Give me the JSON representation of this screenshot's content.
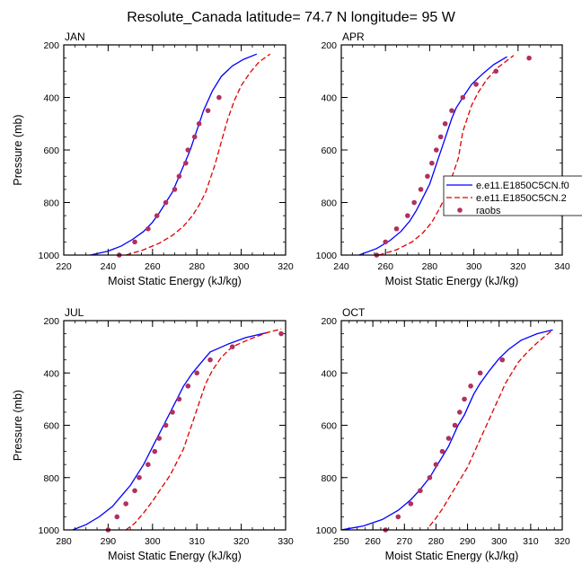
{
  "figure_title": "Resolute_Canada  latitude= 74.7 N longitude= 95 W",
  "legend": {
    "labels": [
      "e.e11.E1850C5CN.f0",
      "e.e11.E1850C5CN.2",
      "raobs"
    ],
    "colors": [
      "#0000ff",
      "#e00000",
      "#b03060"
    ]
  },
  "chart_data": [
    {
      "type": "line",
      "title": "JAN",
      "xlabel": "Moist Static Energy (kJ/kg)",
      "ylabel": "Pressure (mb)",
      "xlim": [
        220,
        320
      ],
      "ylim": [
        1000,
        200
      ],
      "xticks": [
        220,
        240,
        260,
        280,
        300,
        320
      ],
      "yticks": [
        200,
        400,
        600,
        800,
        1000
      ],
      "series": [
        {
          "points": [
            [
              232,
              1000
            ],
            [
              240,
              985
            ],
            [
              246,
              965
            ],
            [
              251,
              940
            ],
            [
              256,
              910
            ],
            [
              260,
              875
            ],
            [
              263,
              840
            ],
            [
              266,
              800
            ],
            [
              269,
              760
            ],
            [
              271,
              720
            ],
            [
              273,
              680
            ],
            [
              275,
              640
            ],
            [
              277,
              600
            ],
            [
              279,
              550
            ],
            [
              281,
              500
            ],
            [
              283,
              450
            ],
            [
              287,
              375
            ],
            [
              291,
              320
            ],
            [
              296,
              280
            ],
            [
              301,
              255
            ],
            [
              307,
              235
            ]
          ],
          "style": "solid",
          "color": "#0000ff"
        },
        {
          "points": [
            [
              248,
              1000
            ],
            [
              256,
              980
            ],
            [
              263,
              955
            ],
            [
              269,
              925
            ],
            [
              274,
              890
            ],
            [
              278,
              850
            ],
            [
              281,
              810
            ],
            [
              284,
              760
            ],
            [
              286,
              710
            ],
            [
              288,
              660
            ],
            [
              290,
              600
            ],
            [
              292,
              540
            ],
            [
              294,
              480
            ],
            [
              297,
              410
            ],
            [
              300,
              355
            ],
            [
              304,
              305
            ],
            [
              308,
              265
            ],
            [
              313,
              235
            ]
          ],
          "style": "dashed",
          "color": "#e00000"
        },
        {
          "points": [
            [
              245,
              1000
            ],
            [
              252,
              950
            ],
            [
              258,
              900
            ],
            [
              262,
              850
            ],
            [
              266,
              800
            ],
            [
              270,
              750
            ],
            [
              272,
              700
            ],
            [
              275,
              650
            ],
            [
              276,
              600
            ],
            [
              279,
              550
            ],
            [
              281,
              500
            ],
            [
              285,
              450
            ],
            [
              290,
              400
            ]
          ],
          "style": "dots",
          "color": "#b03060"
        }
      ]
    },
    {
      "type": "line",
      "title": "APR",
      "xlabel": "Moist Static Energy (kJ/kg)",
      "ylabel": "",
      "xlim": [
        240,
        340
      ],
      "ylim": [
        1000,
        200
      ],
      "xticks": [
        240,
        260,
        280,
        300,
        320,
        340
      ],
      "yticks": [
        200,
        400,
        600,
        800,
        1000
      ],
      "series": [
        {
          "points": [
            [
              248,
              1000
            ],
            [
              256,
              975
            ],
            [
              262,
              945
            ],
            [
              267,
              910
            ],
            [
              271,
              870
            ],
            [
              274,
              830
            ],
            [
              277,
              780
            ],
            [
              280,
              730
            ],
            [
              282,
              680
            ],
            [
              284,
              630
            ],
            [
              286,
              580
            ],
            [
              288,
              530
            ],
            [
              290,
              480
            ],
            [
              292,
              440
            ],
            [
              295,
              400
            ],
            [
              299,
              350
            ],
            [
              304,
              310
            ],
            [
              309,
              275
            ],
            [
              315,
              245
            ]
          ],
          "style": "solid",
          "color": "#0000ff"
        },
        {
          "points": [
            [
              257,
              1000
            ],
            [
              265,
              980
            ],
            [
              272,
              950
            ],
            [
              277,
              915
            ],
            [
              281,
              875
            ],
            [
              284,
              830
            ],
            [
              287,
              780
            ],
            [
              289,
              730
            ],
            [
              291,
              680
            ],
            [
              293,
              630
            ],
            [
              294,
              580
            ],
            [
              295,
              530
            ],
            [
              297,
              480
            ],
            [
              299,
              430
            ],
            [
              302,
              380
            ],
            [
              306,
              330
            ],
            [
              311,
              285
            ],
            [
              318,
              240
            ]
          ],
          "style": "dashed",
          "color": "#e00000"
        },
        {
          "points": [
            [
              256,
              1000
            ],
            [
              260,
              950
            ],
            [
              265,
              900
            ],
            [
              270,
              850
            ],
            [
              273,
              800
            ],
            [
              276,
              750
            ],
            [
              279,
              700
            ],
            [
              281,
              650
            ],
            [
              283,
              600
            ],
            [
              285,
              550
            ],
            [
              287,
              500
            ],
            [
              290,
              450
            ],
            [
              295,
              400
            ],
            [
              301,
              350
            ],
            [
              310,
              300
            ],
            [
              325,
              250
            ]
          ],
          "style": "dots",
          "color": "#b03060"
        }
      ]
    },
    {
      "type": "line",
      "title": "JUL",
      "xlabel": "Moist Static Energy (kJ/kg)",
      "ylabel": "Pressure (mb)",
      "xlim": [
        280,
        330
      ],
      "ylim": [
        1000,
        200
      ],
      "xticks": [
        280,
        290,
        300,
        310,
        320,
        330
      ],
      "yticks": [
        200,
        400,
        600,
        800,
        1000
      ],
      "series": [
        {
          "points": [
            [
              282,
              1000
            ],
            [
              285,
              980
            ],
            [
              288,
              950
            ],
            [
              291,
              910
            ],
            [
              293,
              870
            ],
            [
              295,
              830
            ],
            [
              296.5,
              790
            ],
            [
              298,
              750
            ],
            [
              299.5,
              700
            ],
            [
              301,
              650
            ],
            [
              302.5,
              600
            ],
            [
              304,
              550
            ],
            [
              305.5,
              500
            ],
            [
              307,
              450
            ],
            [
              309,
              400
            ],
            [
              311,
              360
            ],
            [
              313,
              320
            ],
            [
              317,
              290
            ],
            [
              321,
              265
            ],
            [
              326,
              245
            ]
          ],
          "style": "solid",
          "color": "#0000ff"
        },
        {
          "points": [
            [
              294,
              1000
            ],
            [
              296,
              975
            ],
            [
              298,
              935
            ],
            [
              300,
              890
            ],
            [
              302,
              840
            ],
            [
              304,
              790
            ],
            [
              305.5,
              740
            ],
            [
              307,
              690
            ],
            [
              308,
              640
            ],
            [
              309,
              590
            ],
            [
              310,
              540
            ],
            [
              311,
              490
            ],
            [
              312,
              440
            ],
            [
              313.5,
              390
            ],
            [
              315.5,
              340
            ],
            [
              318,
              300
            ],
            [
              322,
              270
            ],
            [
              326,
              245
            ],
            [
              329,
              232
            ]
          ],
          "style": "dashed",
          "color": "#e00000"
        },
        {
          "points": [
            [
              290,
              1000
            ],
            [
              292,
              950
            ],
            [
              294,
              900
            ],
            [
              296,
              850
            ],
            [
              297,
              800
            ],
            [
              299,
              750
            ],
            [
              300.5,
              700
            ],
            [
              301.5,
              650
            ],
            [
              303,
              600
            ],
            [
              304.5,
              550
            ],
            [
              306,
              500
            ],
            [
              308,
              450
            ],
            [
              310,
              400
            ],
            [
              313,
              350
            ],
            [
              318,
              300
            ],
            [
              329,
              250
            ]
          ],
          "style": "dots",
          "color": "#b03060"
        }
      ]
    },
    {
      "type": "line",
      "title": "OCT",
      "xlabel": "Moist Static Energy (kJ/kg)",
      "ylabel": "",
      "xlim": [
        250,
        320
      ],
      "ylim": [
        1000,
        200
      ],
      "xticks": [
        250,
        260,
        270,
        280,
        290,
        300,
        310,
        320
      ],
      "yticks": [
        200,
        400,
        600,
        800,
        1000
      ],
      "series": [
        {
          "points": [
            [
              250,
              1000
            ],
            [
              257,
              985
            ],
            [
              263,
              960
            ],
            [
              268,
              925
            ],
            [
              272,
              885
            ],
            [
              275,
              845
            ],
            [
              278,
              800
            ],
            [
              280,
              760
            ],
            [
              282,
              720
            ],
            [
              284,
              680
            ],
            [
              285.5,
              640
            ],
            [
              287,
              600
            ],
            [
              289,
              560
            ],
            [
              290.5,
              520
            ],
            [
              292,
              480
            ],
            [
              294,
              440
            ],
            [
              297,
              390
            ],
            [
              300,
              345
            ],
            [
              303,
              310
            ],
            [
              307,
              275
            ],
            [
              312,
              250
            ],
            [
              317,
              235
            ]
          ],
          "style": "solid",
          "color": "#0000ff"
        },
        {
          "points": [
            [
              278,
              985
            ],
            [
              280,
              955
            ],
            [
              282,
              920
            ],
            [
              284,
              880
            ],
            [
              286,
              840
            ],
            [
              288,
              800
            ],
            [
              290,
              760
            ],
            [
              291.5,
              720
            ],
            [
              293,
              680
            ],
            [
              294.5,
              640
            ],
            [
              296,
              600
            ],
            [
              297.5,
              560
            ],
            [
              299,
              520
            ],
            [
              300.5,
              480
            ],
            [
              302,
              440
            ],
            [
              304,
              400
            ],
            [
              306,
              360
            ],
            [
              309,
              320
            ],
            [
              312,
              285
            ],
            [
              315,
              255
            ],
            [
              317,
              235
            ]
          ],
          "style": "dashed",
          "color": "#e00000"
        },
        {
          "points": [
            [
              264,
              1000
            ],
            [
              268,
              950
            ],
            [
              272,
              900
            ],
            [
              275,
              850
            ],
            [
              278,
              800
            ],
            [
              280,
              750
            ],
            [
              282,
              700
            ],
            [
              284,
              650
            ],
            [
              286,
              600
            ],
            [
              287.5,
              550
            ],
            [
              289,
              500
            ],
            [
              291,
              450
            ],
            [
              294,
              400
            ],
            [
              301,
              350
            ]
          ],
          "style": "dots",
          "color": "#b03060"
        }
      ]
    }
  ]
}
